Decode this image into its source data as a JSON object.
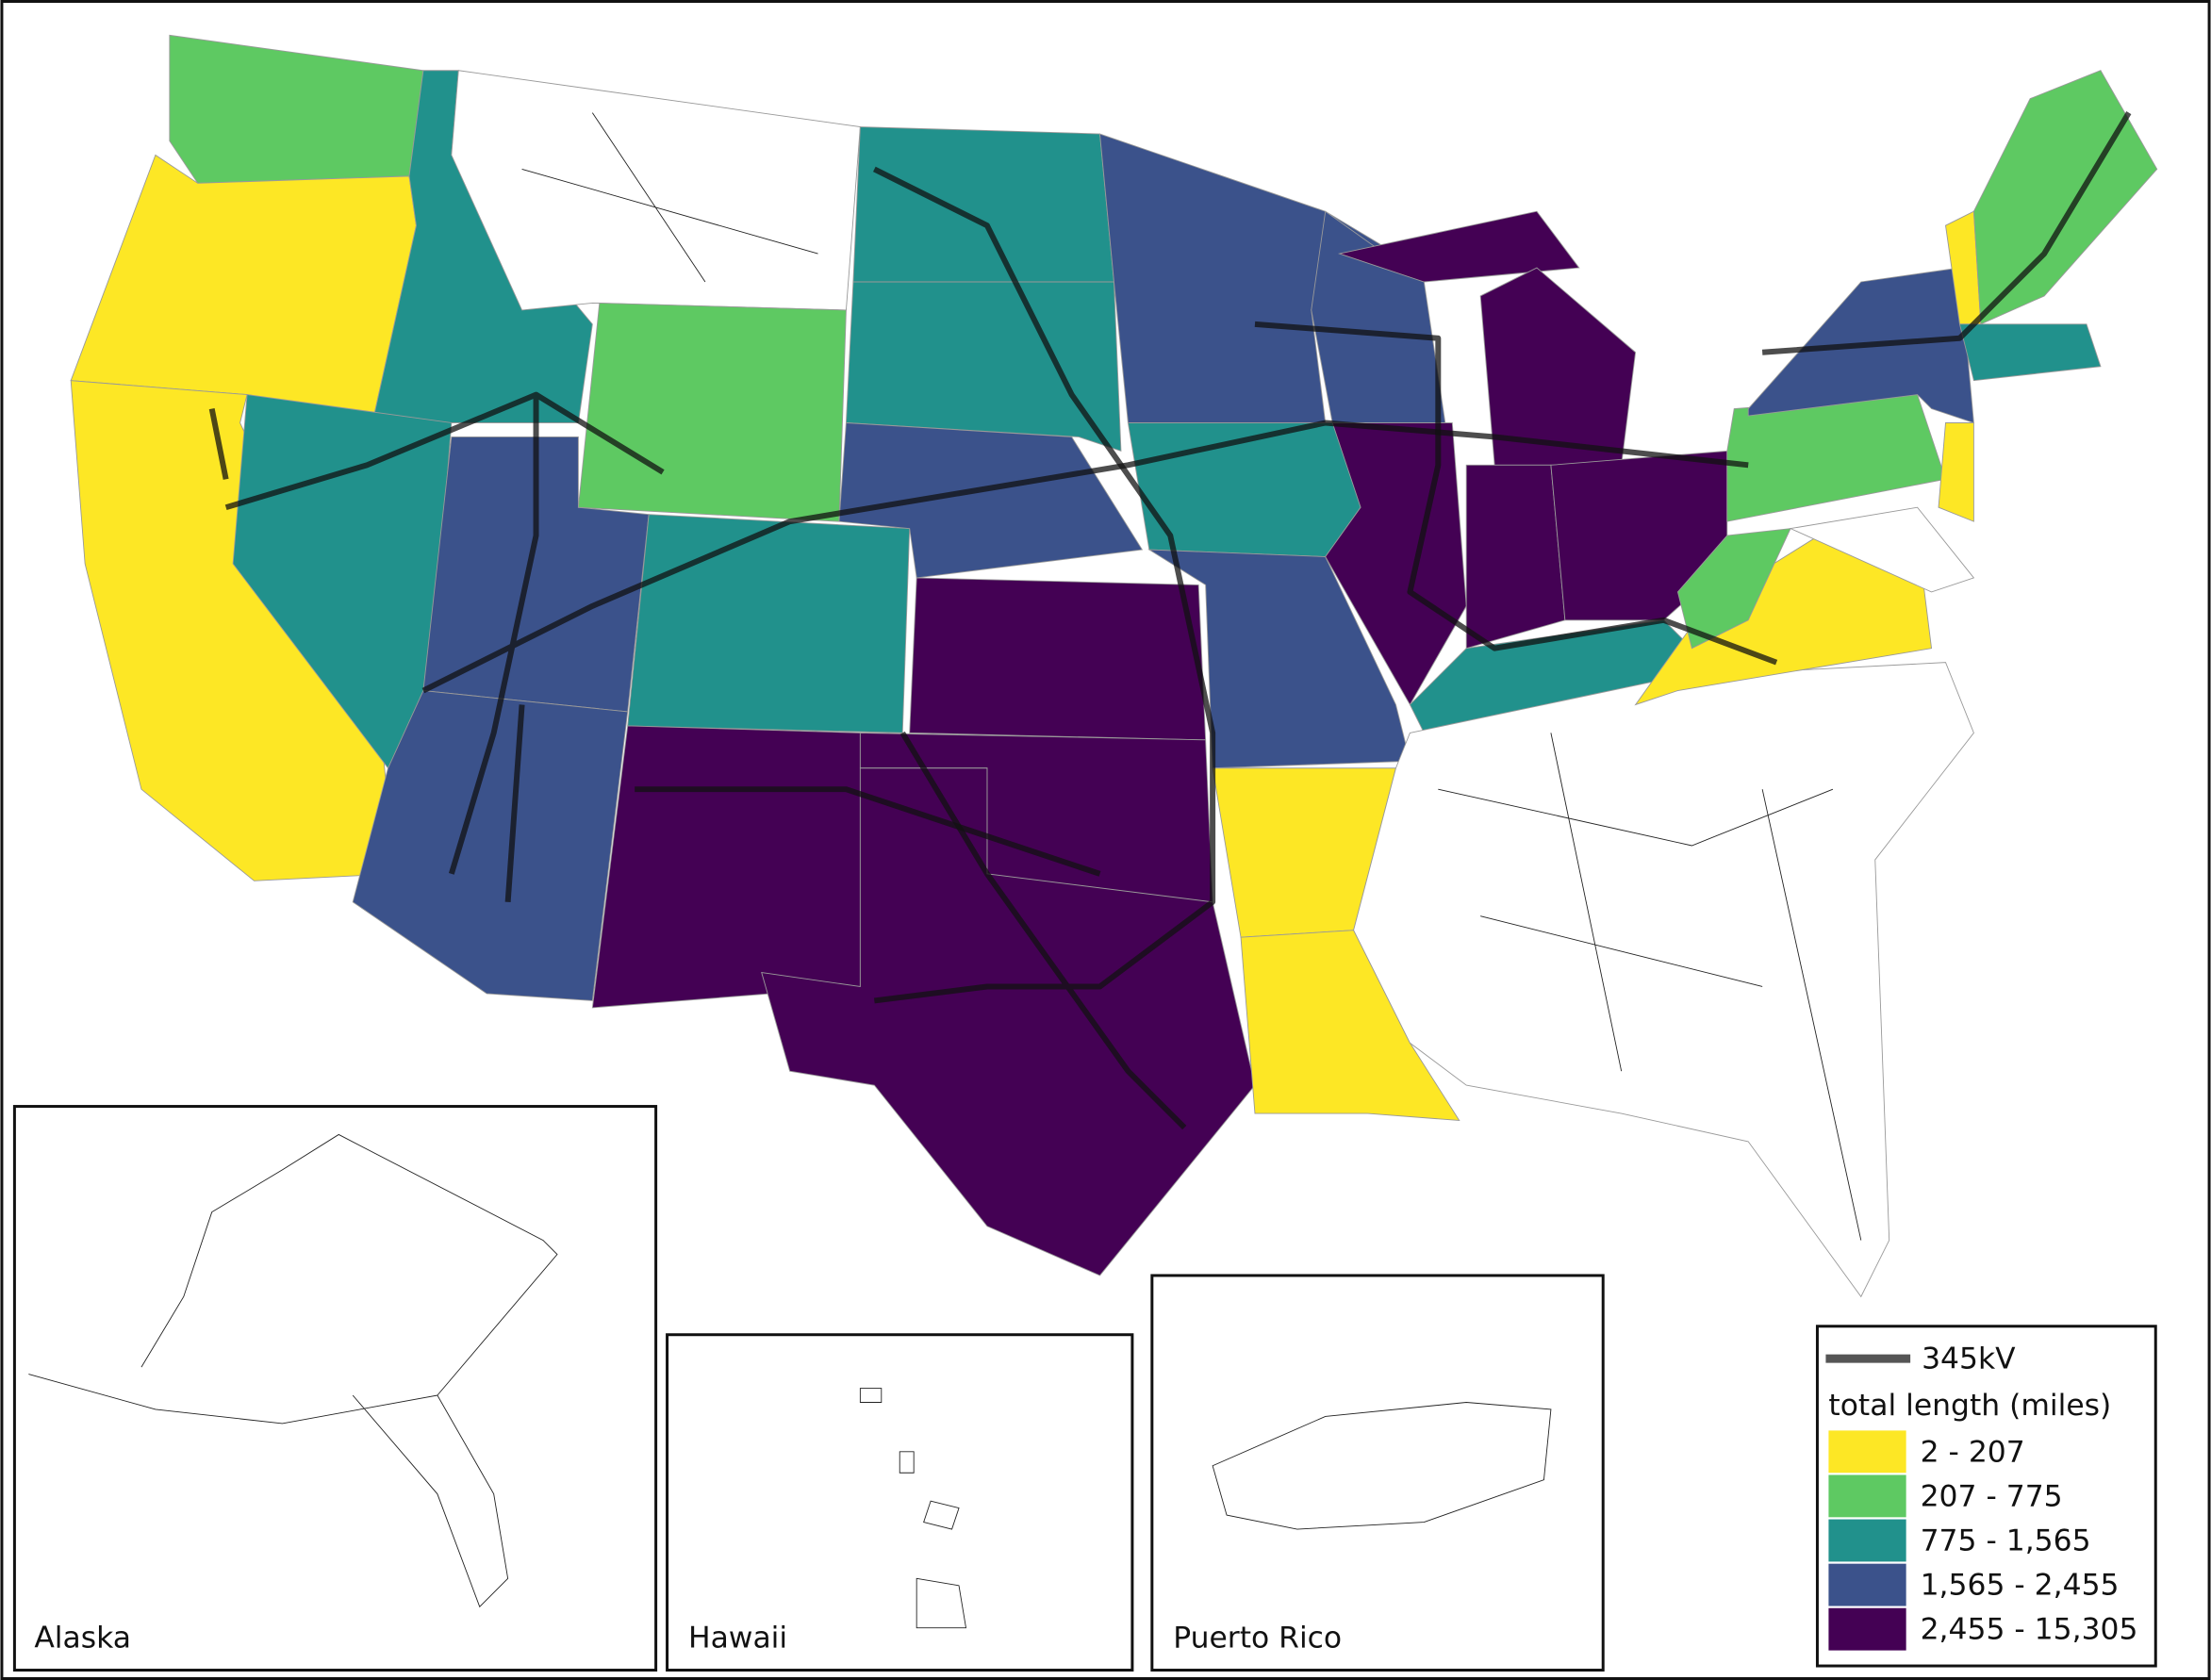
{
  "legend": {
    "line": {
      "label": "345kV",
      "color": "#555555"
    },
    "title": "total length (miles)",
    "bins": [
      {
        "label": "2 - 207",
        "color": "#fde725"
      },
      {
        "label": "207 - 775",
        "color": "#5ec962"
      },
      {
        "label": "775 - 1,565",
        "color": "#21918c"
      },
      {
        "label": "1,565 - 2,455",
        "color": "#3b528b"
      },
      {
        "label": "2,455 - 15,305",
        "color": "#440154"
      }
    ]
  },
  "insets": [
    {
      "label": "Alaska"
    },
    {
      "label": "Hawaii"
    },
    {
      "label": "Puerto Rico"
    }
  ]
}
